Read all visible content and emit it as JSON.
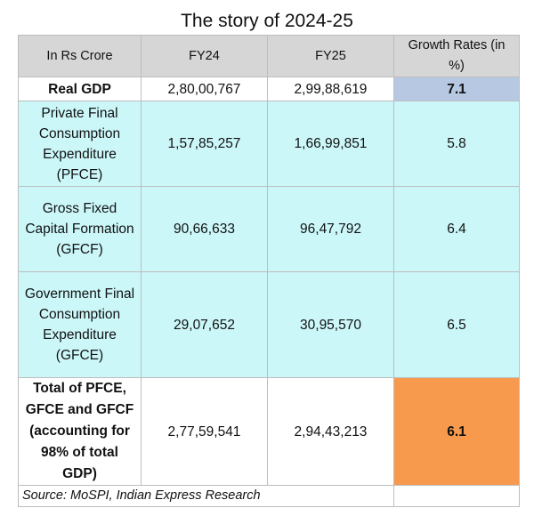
{
  "title": "The story of 2024-25",
  "table": {
    "headers": [
      "In Rs Crore",
      "FY24",
      "FY25",
      "Growth Rates (in %)"
    ],
    "rows": [
      {
        "label": "Real GDP",
        "fy24": "2,80,00,767",
        "fy25": "2,99,88,619",
        "growth": "7.1"
      },
      {
        "label": "Private Final Consumption Expenditure (PFCE)",
        "fy24": "1,57,85,257",
        "fy25": "1,66,99,851",
        "growth": "5.8"
      },
      {
        "label": "Gross Fixed Capital Formation (GFCF)",
        "fy24": "90,66,633",
        "fy25": "96,47,792",
        "growth": "6.4"
      },
      {
        "label": "Government Final Consumption Expenditure (GFCE)",
        "fy24": "29,07,652",
        "fy25": "30,95,570",
        "growth": "6.5"
      },
      {
        "label": "Total of PFCE, GFCE and GFCF (accounting for 98% of total GDP)",
        "fy24": "2,77,59,541",
        "fy25": "2,94,43,213",
        "growth": "6.1"
      }
    ],
    "source": "Source: MoSPI, Indian Express Research"
  },
  "colors": {
    "header_bg": "#d6d6d6",
    "highlight_gdp": "#b7c9e2",
    "components_bg": "#ccf7f9",
    "highlight_total": "#f79a4e"
  }
}
